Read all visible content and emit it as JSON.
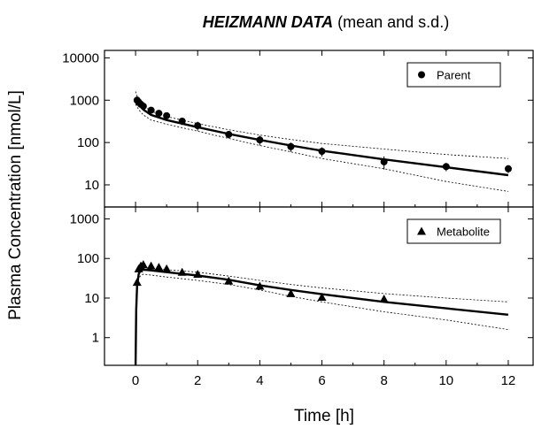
{
  "figure": {
    "title_bold": "HEIZMANN DATA",
    "title_rest": " (mean and s.d.)",
    "ylabel": "Plasma Concentration [nmol/L]",
    "xlabel": "Time [h]"
  },
  "chart_data": [
    {
      "type": "scatter",
      "panel": "top",
      "title": "HEIZMANN DATA (mean and s.d.)",
      "xlabel": "Time [h]",
      "ylabel": "Plasma Concentration [nmol/L]",
      "xlim": [
        -1,
        12.8
      ],
      "ylim": [
        3,
        15000
      ],
      "y_scale": "log",
      "grid": false,
      "legend_position": "top-right",
      "x_ticks": [
        0,
        2,
        4,
        6,
        8,
        10,
        12
      ],
      "x_tick_labels": [
        "0",
        "2",
        "4",
        "6",
        "8",
        "10",
        "12"
      ],
      "y_ticks": [
        10,
        100,
        1000,
        10000
      ],
      "y_tick_labels": [
        "10",
        "100",
        "1000",
        "10000"
      ],
      "series": [
        {
          "name": "Parent",
          "marker": "circle",
          "x": [
            0.05,
            0.1,
            0.17,
            0.25,
            0.5,
            0.75,
            1.0,
            1.5,
            2.0,
            3.0,
            4.0,
            5.0,
            6.0,
            8.0,
            10.0,
            12.0
          ],
          "y": [
            1000,
            900,
            800,
            720,
            580,
            490,
            430,
            320,
            250,
            155,
            115,
            80,
            62,
            35,
            27,
            24
          ],
          "sd": [
            250,
            180,
            150,
            120,
            100,
            80,
            70,
            60,
            60,
            30,
            30,
            20,
            15,
            12,
            6,
            5
          ]
        }
      ],
      "fit_curves": [
        {
          "role": "model-mean",
          "x": [
            0,
            0.05,
            0.1,
            0.25,
            0.5,
            1,
            2,
            3,
            4,
            5,
            6,
            8,
            10,
            12
          ],
          "y": [
            1100,
            950,
            800,
            600,
            450,
            340,
            230,
            160,
            115,
            85,
            64,
            40,
            26,
            17
          ]
        },
        {
          "role": "upper-bound",
          "x": [
            0,
            0.05,
            0.1,
            0.25,
            0.5,
            1,
            2,
            3,
            4,
            5,
            6,
            8,
            10,
            12
          ],
          "y": [
            1600,
            1250,
            1000,
            750,
            550,
            410,
            280,
            200,
            150,
            118,
            95,
            70,
            52,
            42
          ]
        },
        {
          "role": "lower-bound",
          "x": [
            0,
            0.05,
            0.1,
            0.25,
            0.5,
            1,
            2,
            3,
            4,
            5,
            6,
            8,
            10,
            12
          ],
          "y": [
            800,
            700,
            600,
            450,
            340,
            270,
            185,
            125,
            85,
            60,
            42,
            24,
            12,
            7
          ]
        }
      ]
    },
    {
      "type": "scatter",
      "panel": "bottom",
      "xlabel": "Time [h]",
      "ylabel": "Plasma Concentration [nmol/L]",
      "xlim": [
        -1,
        12.8
      ],
      "ylim": [
        0.2,
        2000
      ],
      "y_scale": "log",
      "grid": false,
      "legend_position": "top-right",
      "x_ticks": [
        0,
        2,
        4,
        6,
        8,
        10,
        12
      ],
      "x_tick_labels": [
        "0",
        "2",
        "4",
        "6",
        "8",
        "10",
        "12"
      ],
      "y_ticks": [
        1,
        10,
        100,
        1000
      ],
      "y_tick_labels": [
        "1",
        "10",
        "100",
        "1000"
      ],
      "series": [
        {
          "name": "Metabolite",
          "marker": "triangle",
          "x": [
            0.05,
            0.1,
            0.17,
            0.25,
            0.5,
            0.75,
            1.0,
            1.5,
            2.0,
            3.0,
            4.0,
            5.0,
            6.0,
            8.0
          ],
          "y": [
            25,
            55,
            65,
            70,
            65,
            60,
            55,
            45,
            40,
            27,
            20,
            13,
            10.5,
            9.5
          ],
          "sd": [
            5,
            10,
            10,
            10,
            8,
            8,
            6,
            5,
            5,
            4,
            3,
            2,
            1.5,
            1.5
          ]
        }
      ],
      "fit_curves": [
        {
          "role": "model-mean",
          "x": [
            0,
            0.02,
            0.05,
            0.1,
            0.15,
            0.25,
            0.5,
            1,
            2,
            3,
            4,
            5,
            6,
            8,
            10,
            12
          ],
          "y": [
            0.2,
            5,
            20,
            40,
            48,
            52,
            50,
            45,
            37,
            29,
            21,
            16,
            12.5,
            8,
            5.5,
            3.8
          ]
        },
        {
          "role": "upper-bound",
          "x": [
            0,
            0.02,
            0.05,
            0.1,
            0.15,
            0.25,
            0.5,
            1,
            2,
            3,
            4,
            5,
            6,
            8,
            10,
            12
          ],
          "y": [
            0.2,
            6,
            25,
            48,
            55,
            58,
            56,
            52,
            45,
            36,
            28,
            22,
            18,
            13,
            10,
            8
          ]
        },
        {
          "role": "lower-bound",
          "x": [
            0,
            0.02,
            0.05,
            0.1,
            0.15,
            0.25,
            0.5,
            1,
            2,
            3,
            4,
            5,
            6,
            8,
            10,
            12
          ],
          "y": [
            0.2,
            4,
            15,
            30,
            36,
            40,
            38,
            34,
            28,
            22,
            16,
            11,
            8,
            4.5,
            2.8,
            1.6
          ]
        }
      ]
    }
  ]
}
